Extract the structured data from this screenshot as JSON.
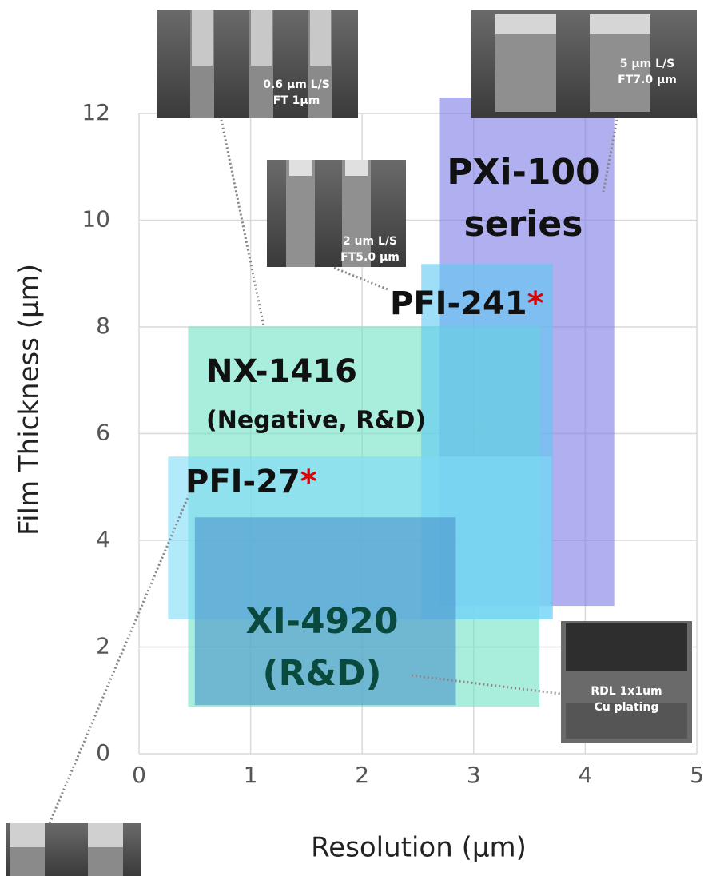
{
  "chart_data": {
    "type": "range-box",
    "x_label": "Resolution (μm)",
    "y_label": "Film Thickness (μm)",
    "xlim": [
      0,
      5
    ],
    "xticks": [
      0,
      1,
      2,
      3,
      4,
      5
    ],
    "ylim": [
      0,
      12
    ],
    "yticks": [
      0,
      2,
      4,
      6,
      8,
      10,
      12
    ],
    "grid": true,
    "series": [
      {
        "name": "PXi-100",
        "name_line2": "series",
        "color": "#7b7be6",
        "x": [
          2.69,
          4.26
        ],
        "y": [
          2.77,
          12.3
        ]
      },
      {
        "name": "NX-1416",
        "name_line2": "(Negative, R&D)",
        "color": "#6fe3c4",
        "x": [
          0.44,
          3.59
        ],
        "y": [
          0.88,
          8.01
        ]
      },
      {
        "name": "PFI-241",
        "asterisk": "*",
        "color": "#5fc8f2",
        "x": [
          2.53,
          3.71
        ],
        "y": [
          2.52,
          9.18
        ]
      },
      {
        "name": "PFI-27",
        "asterisk": "*",
        "color": "#7fdaf8",
        "x": [
          0.26,
          3.7
        ],
        "y": [
          2.52,
          5.57
        ]
      },
      {
        "name": "XI-4920",
        "name_line2": "(R&D)",
        "color": "#4b93cc",
        "x": [
          0.5,
          2.84
        ],
        "y": [
          0.91,
          4.43
        ]
      }
    ]
  },
  "micrographs": [
    {
      "lines": [
        "0.6 μm L/S",
        "FT 1μm"
      ]
    },
    {
      "lines": [
        "5 μm L/S",
        "FT7.0 μm"
      ]
    },
    {
      "lines": [
        "2 um L/S",
        "FT5.0 μm"
      ]
    },
    {
      "lines": [
        "RDL 1x1um",
        "Cu plating"
      ]
    }
  ]
}
